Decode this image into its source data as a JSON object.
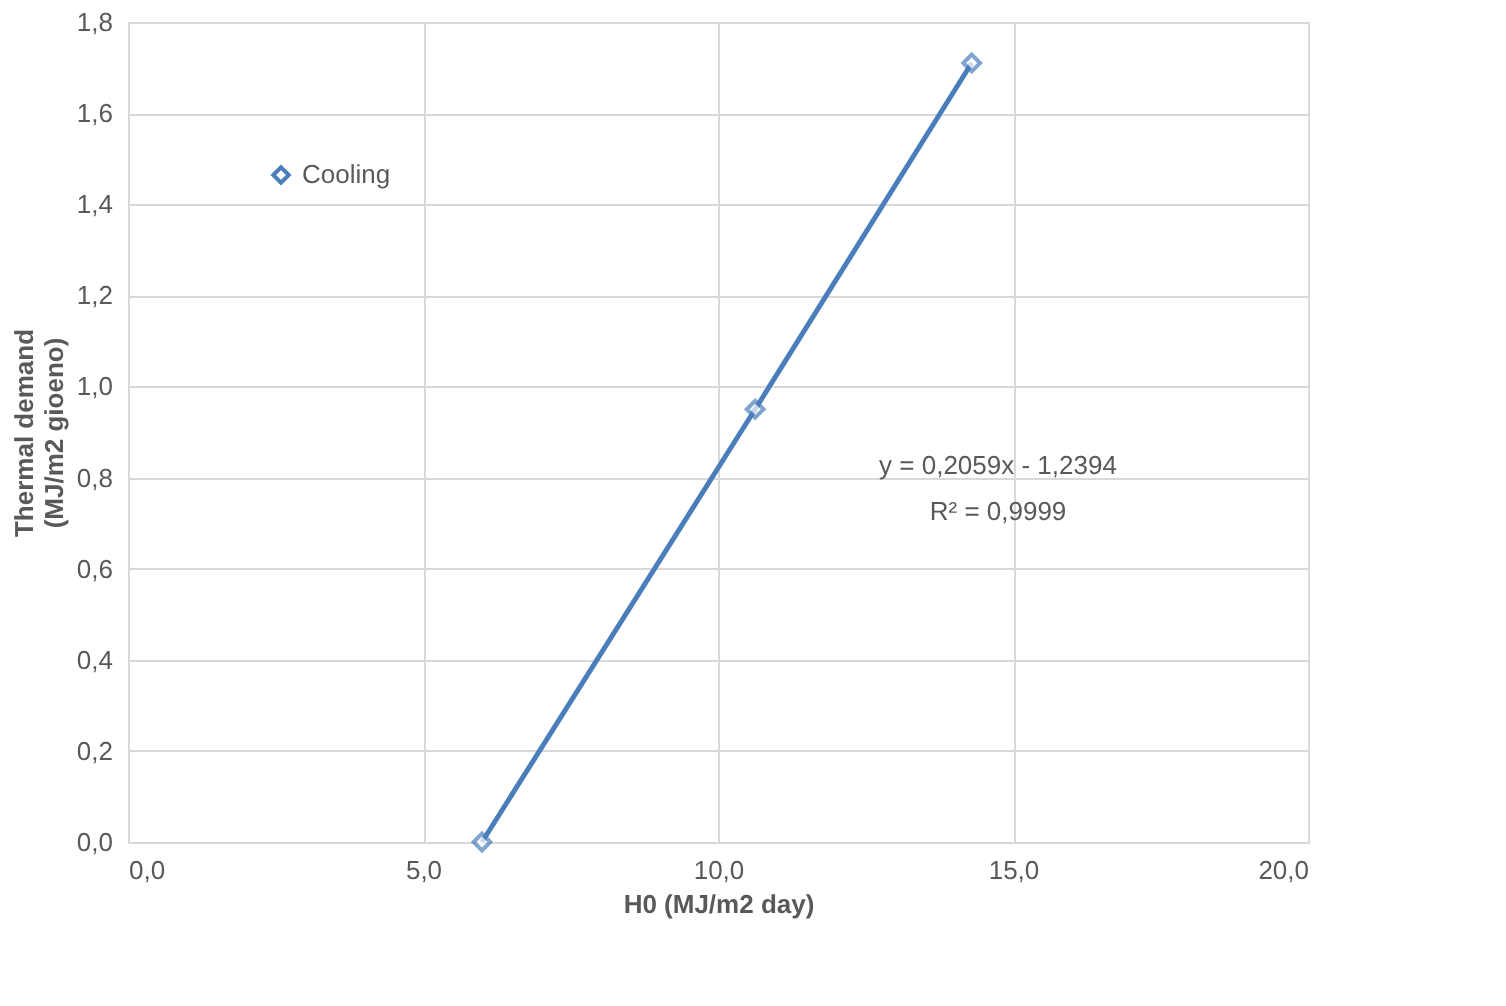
{
  "chart_data": {
    "type": "line",
    "xlabel": "H0 (MJ/m2 day)",
    "ylabel": "Thermal demand\n(MJ/m2 gioeno)",
    "x": [
      6.0,
      10.63,
      14.3
    ],
    "series": [
      {
        "name": "Cooling",
        "color": "#4a7ebb",
        "values": [
          0.0,
          0.95,
          1.71
        ]
      }
    ],
    "xlim": [
      0,
      20
    ],
    "xticks": [
      {
        "value": 0,
        "label": "0,0"
      },
      {
        "value": 5,
        "label": "5,0"
      },
      {
        "value": 10,
        "label": "10,0"
      },
      {
        "value": 15,
        "label": "15,0"
      },
      {
        "value": 20,
        "label": "20,0"
      }
    ],
    "ylim": [
      0,
      1.8
    ],
    "yticks": [
      {
        "value": 0,
        "label": "0,0"
      },
      {
        "value": 0.2,
        "label": "0,2"
      },
      {
        "value": 0.4,
        "label": "0,4"
      },
      {
        "value": 0.6,
        "label": "0,6"
      },
      {
        "value": 0.8,
        "label": "0,8"
      },
      {
        "value": 1.0,
        "label": "1,0"
      },
      {
        "value": 1.2,
        "label": "1,2"
      },
      {
        "value": 1.4,
        "label": "1,4"
      },
      {
        "value": 1.6,
        "label": "1,6"
      },
      {
        "value": 1.8,
        "label": "1,8"
      }
    ],
    "annotations": [
      "y = 0,2059x - 1,2394",
      "R² = 0,9999"
    ],
    "grid": true,
    "legend": "top left",
    "marker": "diamond",
    "line_style": "solid"
  }
}
